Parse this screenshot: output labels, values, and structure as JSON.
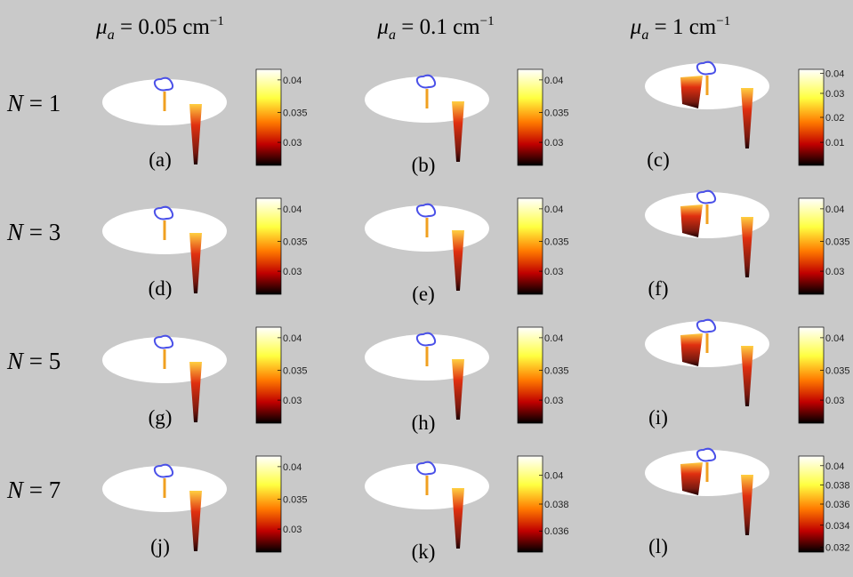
{
  "columns": [
    {
      "symbol": "μ",
      "subscript": "a",
      "equals": " = 0.05 cm",
      "superscript": "−1"
    },
    {
      "symbol": "μ",
      "subscript": "a",
      "equals": " = 0.1 cm",
      "superscript": "−1"
    },
    {
      "symbol": "μ",
      "subscript": "a",
      "equals": " = 1 cm",
      "superscript": "−1"
    }
  ],
  "rows": [
    {
      "variable": "N",
      "equals": " = 1"
    },
    {
      "variable": "N",
      "equals": " = 3"
    },
    {
      "variable": "N",
      "equals": " = 5"
    },
    {
      "variable": "N",
      "equals": " = 7"
    }
  ],
  "panels": [
    {
      "label": "(a)",
      "ticks": [
        "0.04",
        "0.035",
        "0.03"
      ]
    },
    {
      "label": "(b)",
      "ticks": [
        "0.04",
        "0.035",
        "0.03"
      ]
    },
    {
      "label": "(c)",
      "ticks": [
        "0.04",
        "0.03",
        "0.02",
        "0.01"
      ]
    },
    {
      "label": "(d)",
      "ticks": [
        "0.04",
        "0.035",
        "0.03"
      ]
    },
    {
      "label": "(e)",
      "ticks": [
        "0.04",
        "0.035",
        "0.03"
      ]
    },
    {
      "label": "(f)",
      "ticks": [
        "0.04",
        "0.035",
        "0.03"
      ]
    },
    {
      "label": "(g)",
      "ticks": [
        "0.04",
        "0.035",
        "0.03"
      ]
    },
    {
      "label": "(h)",
      "ticks": [
        "0.04",
        "0.035",
        "0.03"
      ]
    },
    {
      "label": "(i)",
      "ticks": [
        "0.04",
        "0.035",
        "0.03"
      ]
    },
    {
      "label": "(j)",
      "ticks": [
        "0.04",
        "0.035",
        "0.03"
      ]
    },
    {
      "label": "(k)",
      "ticks": [
        "0.04",
        "0.038",
        "0.036"
      ]
    },
    {
      "label": "(l)",
      "ticks": [
        "0.04",
        "0.038",
        "0.036",
        "0.034",
        "0.032"
      ]
    }
  ]
}
